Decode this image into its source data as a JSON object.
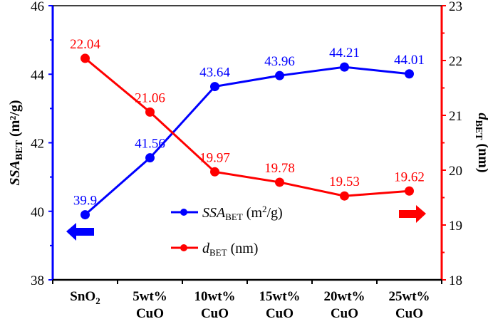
{
  "chart_data": {
    "type": "line",
    "categories": [
      [
        "SnO",
        "2"
      ],
      [
        "5wt%",
        "CuO"
      ],
      [
        "10wt%",
        "CuO"
      ],
      [
        "15wt%",
        "CuO"
      ],
      [
        "20wt%",
        "CuO"
      ],
      [
        "25wt%",
        "CuO"
      ]
    ],
    "series": [
      {
        "name": "SSA_BET (m²/g)",
        "axis": "left",
        "color": "#0000ff",
        "values": [
          39.9,
          41.56,
          43.64,
          43.96,
          44.21,
          44.01
        ],
        "labels": [
          "39.9",
          "41.56",
          "43.64",
          "43.96",
          "44.21",
          "44.01"
        ]
      },
      {
        "name": "d_BET (nm)",
        "axis": "right",
        "color": "#ff0000",
        "values": [
          22.04,
          21.06,
          19.97,
          19.78,
          19.53,
          19.62
        ],
        "labels": [
          "22.04",
          "21.06",
          "19.97",
          "19.78",
          "19.53",
          "19.62"
        ]
      }
    ],
    "left_axis": {
      "label_main": "SSA",
      "label_sub": "BET",
      "label_unit": " (m²/g)",
      "ylim": [
        38,
        46
      ],
      "ticks": [
        "38",
        "40",
        "42",
        "44",
        "46"
      ],
      "color": "#0000ff"
    },
    "right_axis": {
      "label_main": "d",
      "label_sub": "BET",
      "label_unit": " (nm)",
      "ylim": [
        18,
        23
      ],
      "ticks": [
        "18",
        "19",
        "20",
        "21",
        "22",
        "23"
      ],
      "color": "#ff0000"
    },
    "legend": {
      "placement": "center-bottom",
      "items": [
        {
          "main": "SSA",
          "sub": "BET",
          "unit": " (m",
          "sup": "2",
          "tail": "/g)"
        },
        {
          "main": "d",
          "sub": "BET",
          "unit": " (nm)"
        }
      ]
    },
    "arrows": {
      "left_arrow_color": "#0000ff",
      "right_arrow_color": "#ff0000"
    },
    "grid": false
  }
}
